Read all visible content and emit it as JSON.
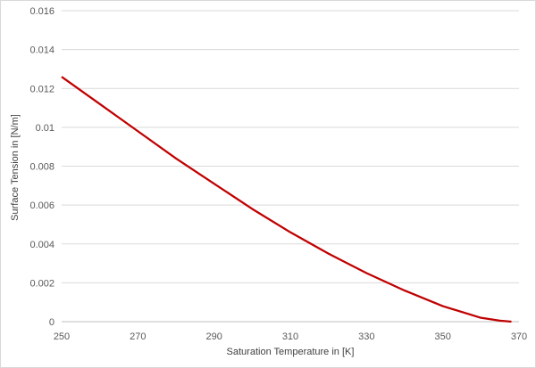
{
  "chart_data": {
    "type": "line",
    "title": "",
    "xlabel": "Saturation Temperature in [K]",
    "ylabel": "Surface Tension in [N/m]",
    "xlim": [
      250,
      370
    ],
    "ylim": [
      0,
      0.016
    ],
    "xticks": [
      250,
      270,
      290,
      310,
      330,
      350,
      370
    ],
    "yticks": [
      0,
      0.002,
      0.004,
      0.006,
      0.008,
      0.01,
      0.012,
      0.014,
      0.016
    ],
    "xtick_labels": [
      "250",
      "270",
      "290",
      "310",
      "330",
      "350",
      "370"
    ],
    "ytick_labels": [
      "0",
      "0.002",
      "0.004",
      "0.006",
      "0.008",
      "0.01",
      "0.012",
      "0.014",
      "0.016"
    ],
    "grid": {
      "horizontal": true,
      "vertical": false
    },
    "legend": "none",
    "colors": {
      "series": "#c00000",
      "grid": "#d9d9d9",
      "axis": "#bfbfbf"
    },
    "series": [
      {
        "x": [
          250,
          260,
          270,
          280,
          290,
          300,
          310,
          320,
          330,
          340,
          350,
          360,
          365,
          368
        ],
        "y": [
          0.0126,
          0.0112,
          0.0098,
          0.0084,
          0.0071,
          0.0058,
          0.0046,
          0.0035,
          0.0025,
          0.0016,
          0.0008,
          0.0002,
          5e-05,
          0.0
        ]
      }
    ]
  }
}
